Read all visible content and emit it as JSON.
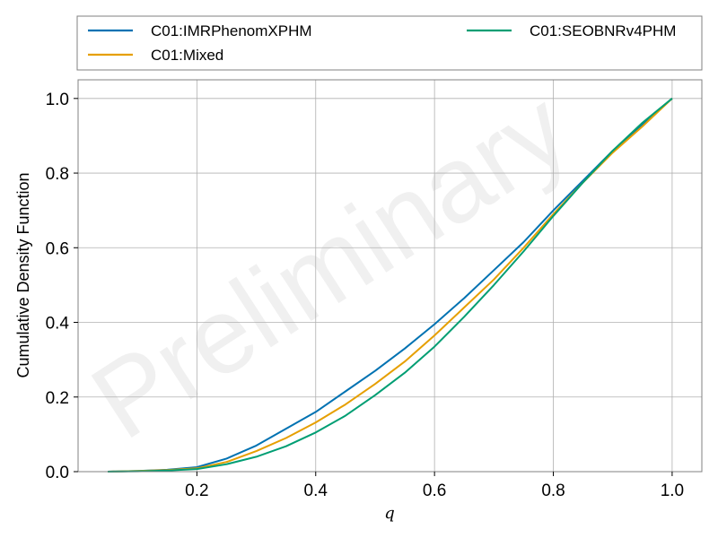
{
  "chart_data": {
    "type": "line",
    "xlabel": "q",
    "ylabel": "Cumulative Density Function",
    "xlim": [
      0.0,
      1.05
    ],
    "ylim": [
      0.0,
      1.05
    ],
    "xticks": [
      0.2,
      0.4,
      0.6,
      0.8,
      1.0
    ],
    "yticks": [
      0.0,
      0.2,
      0.4,
      0.6,
      0.8,
      1.0
    ],
    "xtick_labels": [
      "0.2",
      "0.4",
      "0.6",
      "0.8",
      "1.0"
    ],
    "ytick_labels": [
      "0.0",
      "0.2",
      "0.4",
      "0.6",
      "0.8",
      "1.0"
    ],
    "grid": true,
    "legend_placement": "top-outside",
    "watermark": "Preliminary",
    "series": [
      {
        "name": "C01:IMRPhenomXPHM",
        "color": "#0072b2",
        "x": [
          0.05,
          0.1,
          0.15,
          0.2,
          0.25,
          0.3,
          0.35,
          0.4,
          0.45,
          0.5,
          0.55,
          0.6,
          0.65,
          0.7,
          0.75,
          0.8,
          0.85,
          0.9,
          0.95,
          1.0
        ],
        "y": [
          0.0,
          0.002,
          0.005,
          0.012,
          0.035,
          0.07,
          0.115,
          0.16,
          0.215,
          0.27,
          0.33,
          0.395,
          0.465,
          0.54,
          0.615,
          0.7,
          0.78,
          0.86,
          0.93,
          1.0
        ]
      },
      {
        "name": "C01:Mixed",
        "color": "#e69f00",
        "x": [
          0.05,
          0.1,
          0.15,
          0.2,
          0.25,
          0.3,
          0.35,
          0.4,
          0.45,
          0.5,
          0.55,
          0.6,
          0.65,
          0.7,
          0.75,
          0.8,
          0.85,
          0.9,
          0.95,
          1.0
        ],
        "y": [
          0.0,
          0.002,
          0.004,
          0.009,
          0.026,
          0.055,
          0.09,
          0.132,
          0.18,
          0.235,
          0.295,
          0.365,
          0.44,
          0.515,
          0.6,
          0.69,
          0.775,
          0.855,
          0.925,
          1.0
        ]
      },
      {
        "name": "C01:SEOBNRv4PHM",
        "color": "#009e73",
        "x": [
          0.05,
          0.1,
          0.15,
          0.2,
          0.25,
          0.3,
          0.35,
          0.4,
          0.45,
          0.5,
          0.55,
          0.6,
          0.65,
          0.7,
          0.75,
          0.8,
          0.85,
          0.9,
          0.95,
          1.0
        ],
        "y": [
          0.0,
          0.001,
          0.003,
          0.007,
          0.02,
          0.04,
          0.068,
          0.105,
          0.15,
          0.205,
          0.265,
          0.335,
          0.415,
          0.5,
          0.59,
          0.685,
          0.775,
          0.86,
          0.935,
          1.0
        ]
      }
    ]
  }
}
